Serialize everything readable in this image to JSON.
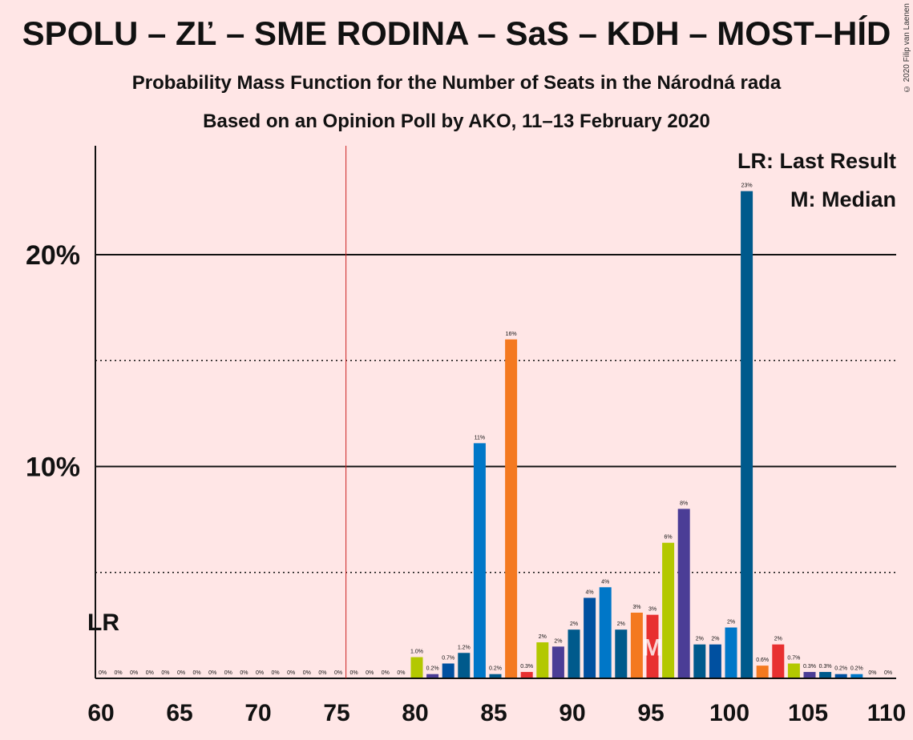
{
  "title": "SPOLU – ZĽ – SME RODINA – SaS – KDH – MOST–HÍD",
  "subtitle1": "Probability Mass Function for the Number of Seats in the Národná rada",
  "subtitle2": "Based on an Opinion Poll by AKO, 11–13 February 2020",
  "copyright": "© 2020 Filip van Laenen",
  "legend": {
    "lr": "LR: Last Result",
    "median": "M: Median"
  },
  "lr_marker": "LR",
  "median_marker": "M",
  "chart_data": {
    "type": "bar",
    "x_range": [
      60,
      110
    ],
    "ylim": [
      0,
      25
    ],
    "y_ticks": [
      {
        "value": 10,
        "label": "10%"
      },
      {
        "value": 20,
        "label": "20%"
      }
    ],
    "y_dotted": [
      5,
      15
    ],
    "x_ticks": [
      60,
      65,
      70,
      75,
      80,
      85,
      90,
      95,
      100,
      105,
      110
    ],
    "majority_line": 76,
    "last_result": 60,
    "median": 95,
    "bars": [
      {
        "x": 60,
        "value": 0,
        "label": "0%",
        "color": "#0077c8"
      },
      {
        "x": 61,
        "value": 0,
        "label": "0%",
        "color": "#0077c8"
      },
      {
        "x": 62,
        "value": 0,
        "label": "0%",
        "color": "#0077c8"
      },
      {
        "x": 63,
        "value": 0,
        "label": "0%",
        "color": "#0077c8"
      },
      {
        "x": 64,
        "value": 0,
        "label": "0%",
        "color": "#0077c8"
      },
      {
        "x": 65,
        "value": 0,
        "label": "0%",
        "color": "#0077c8"
      },
      {
        "x": 66,
        "value": 0,
        "label": "0%",
        "color": "#0077c8"
      },
      {
        "x": 67,
        "value": 0,
        "label": "0%",
        "color": "#0077c8"
      },
      {
        "x": 68,
        "value": 0,
        "label": "0%",
        "color": "#0077c8"
      },
      {
        "x": 69,
        "value": 0,
        "label": "0%",
        "color": "#0077c8"
      },
      {
        "x": 70,
        "value": 0,
        "label": "0%",
        "color": "#0077c8"
      },
      {
        "x": 71,
        "value": 0,
        "label": "0%",
        "color": "#0077c8"
      },
      {
        "x": 72,
        "value": 0,
        "label": "0%",
        "color": "#0077c8"
      },
      {
        "x": 73,
        "value": 0,
        "label": "0%",
        "color": "#0077c8"
      },
      {
        "x": 74,
        "value": 0,
        "label": "0%",
        "color": "#0077c8"
      },
      {
        "x": 75,
        "value": 0,
        "label": "0%",
        "color": "#0077c8"
      },
      {
        "x": 76,
        "value": 0,
        "label": "0%",
        "color": "#0077c8"
      },
      {
        "x": 77,
        "value": 0,
        "label": "0%",
        "color": "#0077c8"
      },
      {
        "x": 78,
        "value": 0,
        "label": "0%",
        "color": "#0077c8"
      },
      {
        "x": 79,
        "value": 0,
        "label": "0%",
        "color": "#0077c8"
      },
      {
        "x": 80,
        "value": 1.0,
        "label": "1.0%",
        "color": "#b3c800"
      },
      {
        "x": 81,
        "value": 0.2,
        "label": "0.2%",
        "color": "#4b3d96"
      },
      {
        "x": 82,
        "value": 0.7,
        "label": "0.7%",
        "color": "#0050a0"
      },
      {
        "x": 83,
        "value": 1.2,
        "label": "1.2%",
        "color": "#005a8c"
      },
      {
        "x": 84,
        "value": 11.1,
        "label": "11%",
        "color": "#0077c8"
      },
      {
        "x": 85,
        "value": 0.2,
        "label": "0.2%",
        "color": "#005a8c"
      },
      {
        "x": 86,
        "value": 16.0,
        "label": "16%",
        "color": "#f47920"
      },
      {
        "x": 87,
        "value": 0.3,
        "label": "0.3%",
        "color": "#e83030"
      },
      {
        "x": 88,
        "value": 1.7,
        "label": "2%",
        "color": "#b3c800"
      },
      {
        "x": 89,
        "value": 1.5,
        "label": "2%",
        "color": "#4b3d96"
      },
      {
        "x": 90,
        "value": 2.3,
        "label": "2%",
        "color": "#005a8c"
      },
      {
        "x": 91,
        "value": 3.8,
        "label": "4%",
        "color": "#0050a0"
      },
      {
        "x": 92,
        "value": 4.3,
        "label": "4%",
        "color": "#0077c8"
      },
      {
        "x": 93,
        "value": 2.3,
        "label": "2%",
        "color": "#005a8c"
      },
      {
        "x": 94,
        "value": 3.1,
        "label": "3%",
        "color": "#f47920"
      },
      {
        "x": 95,
        "value": 3.0,
        "label": "3%",
        "color": "#e83030"
      },
      {
        "x": 96,
        "value": 6.4,
        "label": "6%",
        "color": "#b3c800"
      },
      {
        "x": 97,
        "value": 8.0,
        "label": "8%",
        "color": "#4b3d96"
      },
      {
        "x": 98,
        "value": 1.6,
        "label": "2%",
        "color": "#005a8c"
      },
      {
        "x": 99,
        "value": 1.6,
        "label": "2%",
        "color": "#0050a0"
      },
      {
        "x": 100,
        "value": 2.4,
        "label": "2%",
        "color": "#0077c8"
      },
      {
        "x": 101,
        "value": 23.0,
        "label": "23%",
        "color": "#005a8c"
      },
      {
        "x": 102,
        "value": 0.6,
        "label": "0.6%",
        "color": "#f47920"
      },
      {
        "x": 103,
        "value": 1.6,
        "label": "2%",
        "color": "#e83030"
      },
      {
        "x": 104,
        "value": 0.7,
        "label": "0.7%",
        "color": "#b3c800"
      },
      {
        "x": 105,
        "value": 0.3,
        "label": "0.3%",
        "color": "#4b3d96"
      },
      {
        "x": 106,
        "value": 0.3,
        "label": "0.3%",
        "color": "#005a8c"
      },
      {
        "x": 107,
        "value": 0.2,
        "label": "0.2%",
        "color": "#0050a0"
      },
      {
        "x": 108,
        "value": 0.2,
        "label": "0.2%",
        "color": "#0077c8"
      },
      {
        "x": 109,
        "value": 0,
        "label": "0%",
        "color": "#005a8c"
      },
      {
        "x": 110,
        "value": 0,
        "label": "0%",
        "color": "#005a8c"
      }
    ]
  }
}
